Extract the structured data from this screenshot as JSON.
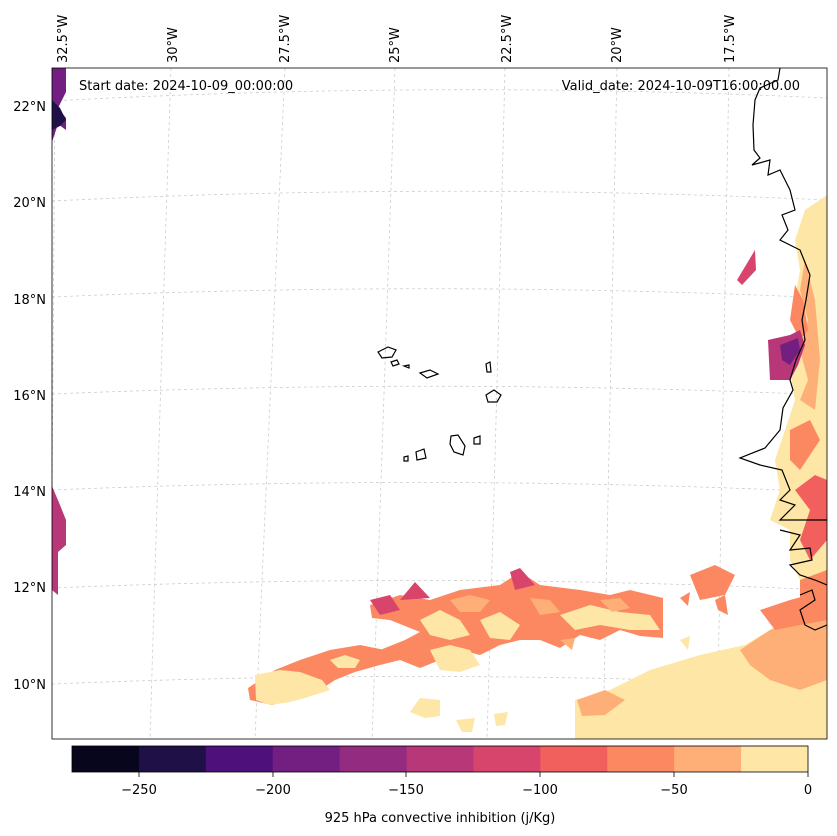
{
  "annotations": {
    "start_date": "Start date: 2024-10-09_00:00:00",
    "valid_date": "Valid_date: 2024-10-09T16:00:00.00"
  },
  "lon_labels": [
    "32.5°W",
    "30°W",
    "27.5°W",
    "25°W",
    "22.5°W",
    "20°W",
    "17.5°W"
  ],
  "lat_labels": [
    "22°N",
    "20°N",
    "18°N",
    "16°N",
    "14°N",
    "12°N",
    "10°N"
  ],
  "colorbar": {
    "label": "925 hPa convective inhibition (j/Kg)",
    "tick_labels": [
      "−250",
      "−200",
      "−150",
      "−100",
      "−50",
      "0"
    ],
    "levels": [
      -275,
      -250,
      -225,
      -200,
      -175,
      -150,
      -125,
      -100,
      -75,
      -50,
      -25,
      0
    ],
    "colors": [
      "#07061c",
      "#1f1147",
      "#4e117b",
      "#721f81",
      "#932b80",
      "#b73779",
      "#d8456c",
      "#f1605d",
      "#fb8861",
      "#feae77",
      "#fde6a6"
    ]
  }
}
